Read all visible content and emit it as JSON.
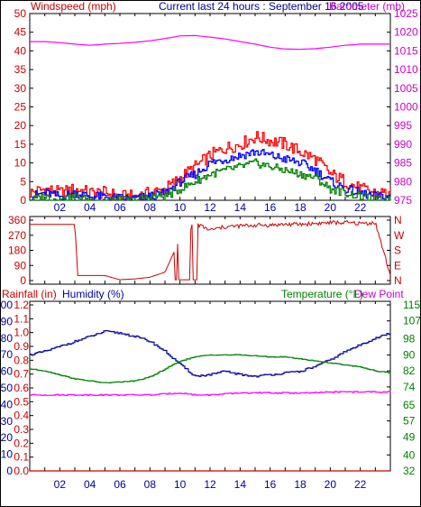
{
  "header": {
    "left_label": "Windspeed (mph)",
    "title": "Current last 24 hours : September 16 2005",
    "right_label": "Barometer (mb)"
  },
  "colors": {
    "wind_gust": "#ff0000",
    "wind_avg": "#0000ff",
    "wind_low": "#008000",
    "barometer": "#ff00ff",
    "direction": "#cc0000",
    "rainfall": "#cc0000",
    "humidity": "#000099",
    "temperature": "#008000",
    "dewpoint": "#ff00ff",
    "axis_red": "#cc0000",
    "axis_magenta": "#cc00cc",
    "axis_blue": "#000099",
    "axis_green": "#008000"
  },
  "chart_data": [
    {
      "type": "line",
      "panel": "wind-barometer",
      "x_tick_labels": [
        "02",
        "04",
        "06",
        "08",
        "10",
        "12",
        "14",
        "16",
        "18",
        "20",
        "22"
      ],
      "ylim_left": [
        0,
        50
      ],
      "y_ticks_left": [
        "0",
        "5",
        "10",
        "15",
        "20",
        "25",
        "30",
        "35",
        "40",
        "45",
        "50"
      ],
      "ylim_right": [
        975,
        1025
      ],
      "y_ticks_right": [
        "975",
        "980",
        "985",
        "990",
        "995",
        "1000",
        "1005",
        "1010",
        "1015",
        "1020",
        "1025"
      ],
      "x": [
        0,
        1,
        2,
        3,
        4,
        5,
        6,
        7,
        8,
        9,
        10,
        11,
        12,
        13,
        14,
        15,
        16,
        17,
        18,
        19,
        20,
        21,
        22,
        23,
        24
      ],
      "series": [
        {
          "name": "Windspeed gust",
          "axis": "left",
          "values": [
            2,
            3,
            2,
            3,
            2,
            2,
            1,
            1,
            2,
            3,
            6,
            9,
            12,
            14,
            15,
            17,
            16,
            15,
            13,
            11,
            7,
            5,
            3,
            2,
            2
          ]
        },
        {
          "name": "Windspeed average",
          "axis": "left",
          "values": [
            1,
            2,
            1,
            2,
            1,
            1,
            0.5,
            0.5,
            1,
            2,
            5,
            7,
            10,
            11,
            12,
            13,
            12,
            11,
            10,
            8,
            5,
            3,
            2,
            1,
            1
          ]
        },
        {
          "name": "Windspeed low",
          "axis": "left",
          "values": [
            0,
            1,
            0,
            1,
            0,
            0,
            0,
            0,
            1,
            1,
            3,
            5,
            7,
            8,
            9,
            10,
            9,
            8,
            7,
            6,
            3,
            2,
            1,
            0,
            0
          ]
        },
        {
          "name": "Barometer",
          "axis": "right",
          "values": [
            1017.5,
            1017.5,
            1017.2,
            1016.8,
            1016.5,
            1016.8,
            1017,
            1017.3,
            1017.7,
            1018.3,
            1019,
            1019.1,
            1018.7,
            1018.2,
            1017.5,
            1016.8,
            1016,
            1015.5,
            1015.4,
            1015.6,
            1016,
            1016.5,
            1016.8,
            1016.8,
            1016.8
          ]
        }
      ]
    },
    {
      "type": "line",
      "panel": "wind-direction",
      "ylim": [
        0,
        360
      ],
      "y_ticks_left": [
        "0",
        "90",
        "180",
        "270",
        "360"
      ],
      "y_ticks_right": [
        "N",
        "E",
        "S",
        "W",
        "N"
      ],
      "x": [
        0,
        1,
        2,
        3,
        3.2,
        4,
        5,
        6,
        7,
        8,
        9,
        10,
        11,
        12,
        13,
        14,
        15,
        16,
        17,
        18,
        19,
        20,
        21,
        22,
        23,
        24
      ],
      "series": [
        {
          "name": "Wind direction",
          "values": [
            335,
            335,
            335,
            335,
            30,
            30,
            30,
            5,
            10,
            20,
            50,
            250,
            340,
            300,
            320,
            325,
            330,
            330,
            335,
            335,
            340,
            345,
            345,
            340,
            345,
            30
          ]
        }
      ]
    },
    {
      "type": "line",
      "panel": "rain-humidity-temperature",
      "ylim_left_humidity": [
        0,
        100
      ],
      "y_ticks_humidity": [
        "0",
        "10",
        "20",
        "30",
        "40",
        "50",
        "60",
        "70",
        "80",
        "90",
        "100"
      ],
      "ylim_left_rain": [
        0,
        1.2
      ],
      "y_ticks_rain": [
        "0.0",
        "0.1",
        "0.2",
        "0.3",
        "0.4",
        "0.5",
        "0.6",
        "0.7",
        "0.8",
        "0.9",
        "1.0",
        "1.1",
        "1.2"
      ],
      "ylim_right": [
        32,
        115
      ],
      "y_ticks_right": [
        "32",
        "40",
        "49",
        "57",
        "65",
        "74",
        "82",
        "90",
        "98",
        "107",
        "115"
      ],
      "x": [
        0,
        1,
        2,
        3,
        4,
        5,
        6,
        7,
        8,
        9,
        10,
        11,
        12,
        13,
        14,
        15,
        16,
        17,
        18,
        19,
        20,
        21,
        22,
        23,
        24
      ],
      "series": [
        {
          "name": "Humidity (%)",
          "axis": "humidity",
          "values": [
            70,
            72,
            75,
            78,
            81,
            84,
            83,
            81,
            78,
            72,
            64,
            57,
            58,
            60,
            58,
            57,
            58,
            59,
            60,
            63,
            67,
            72,
            76,
            80,
            83
          ]
        },
        {
          "name": "Temperature (°F)",
          "axis": "temp",
          "values": [
            83,
            82,
            80,
            78,
            77,
            76,
            76.5,
            77,
            79,
            83,
            87,
            89,
            90,
            90,
            90,
            89.5,
            89,
            89,
            88,
            87,
            86,
            85,
            84,
            82,
            81
          ]
        },
        {
          "name": "Dew Point",
          "axis": "temp",
          "values": [
            70,
            70,
            70,
            70,
            70,
            70,
            70,
            70,
            70,
            70.5,
            71,
            70,
            70,
            70.5,
            71,
            71,
            71,
            71,
            71,
            71,
            71.5,
            71.5,
            71.5,
            71.5,
            71.5
          ]
        },
        {
          "name": "Rainfall (in)",
          "axis": "rain",
          "values": [
            0,
            0,
            0,
            0,
            0,
            0,
            0,
            0,
            0,
            0,
            0,
            0,
            0,
            0,
            0,
            0,
            0,
            0,
            0,
            0,
            0,
            0,
            0,
            0,
            0
          ]
        }
      ],
      "legend": {
        "rain": "Rainfall (in)",
        "humidity": "Humidity (%)",
        "temperature": "Temperature (°F)",
        "dewpoint": "Dew Point"
      }
    }
  ]
}
